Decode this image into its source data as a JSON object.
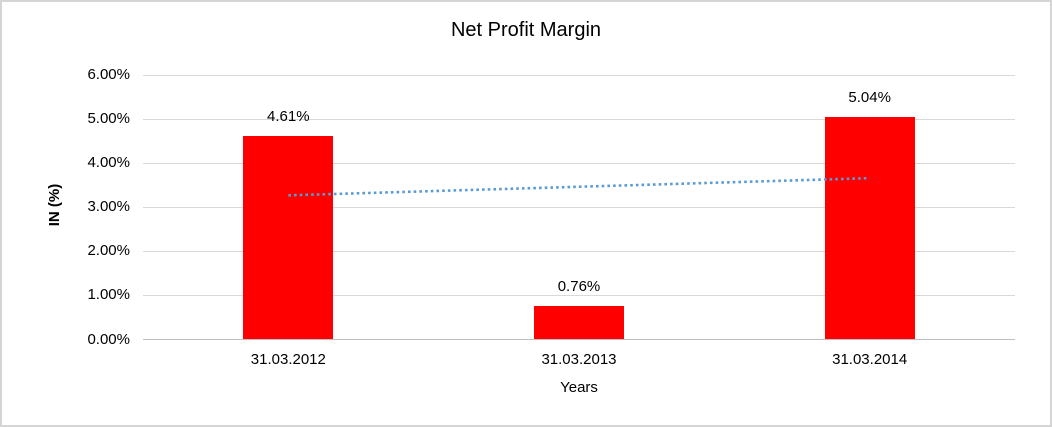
{
  "frame": {
    "background": "#FFFFFF",
    "border_color": "#D5D5D5"
  },
  "chart_data": {
    "type": "bar",
    "title": "Net Profit Margin",
    "xlabel": "Years",
    "ylabel": "IN (%)",
    "categories": [
      "31.03.2012",
      "31.03.2013",
      "31.03.2014"
    ],
    "series": [
      {
        "name": "Net Profit Margin",
        "values": [
          4.61,
          0.76,
          5.04
        ],
        "labels": [
          "4.61%",
          "0.76%",
          "5.04%"
        ],
        "color": "#FF0000"
      }
    ],
    "ylim": [
      0,
      6
    ],
    "y_ticks": [
      {
        "value": 6,
        "label": "6.00%"
      },
      {
        "value": 5,
        "label": "5.00%"
      },
      {
        "value": 4,
        "label": "4.00%"
      },
      {
        "value": 3,
        "label": "3.00%"
      },
      {
        "value": 2,
        "label": "2.00%"
      },
      {
        "value": 1,
        "label": "1.00%"
      },
      {
        "value": 0,
        "label": "0.00%"
      }
    ],
    "grid": true,
    "gridline_color": "#D9D9D9",
    "axis_line_color": "#BFBFBF",
    "legend": "none",
    "trendline": {
      "type": "linear",
      "style": "dotted",
      "color": "#5B9BD5",
      "points": [
        {
          "x": "31.03.2012",
          "value": 3.27
        },
        {
          "x": "31.03.2014",
          "value": 3.66
        }
      ]
    }
  }
}
